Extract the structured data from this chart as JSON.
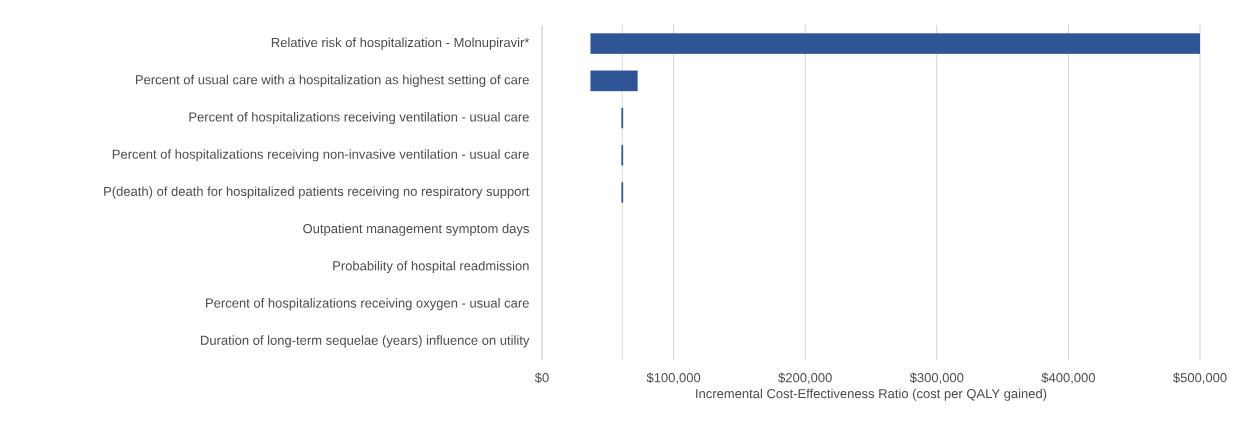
{
  "chart_data": {
    "type": "bar",
    "orientation": "horizontal",
    "xlabel": "Incremental Cost-Effectiveness  Ratio (cost per QALY gained)",
    "categories": [
      "Relative risk of hospitalization - Molnupiravir*",
      "Percent of usual care with a hospitalization as highest setting of care",
      "Percent of hospitalizations receiving ventilation - usual care",
      "Percent of hospitalizations receiving non-invasive ventilation - usual care",
      "P(death) of death for hospitalized patients receiving no respiratory support",
      "Outpatient management symptom days",
      "Probability of hospital readmission",
      "Percent of hospitalizations receiving oxygen - usual care",
      "Duration of long-term sequelae (years) influence on utility"
    ],
    "base": [
      37000,
      37000,
      60500,
      60500,
      60500,
      null,
      null,
      null,
      null
    ],
    "values": [
      463000,
      35500,
      1000,
      1000,
      1000,
      null,
      null,
      null,
      null
    ],
    "color": "#2f5597",
    "xlim": [
      0,
      500000
    ],
    "xticks": [
      {
        "value": 0,
        "label": "$0"
      },
      {
        "value": 100000,
        "label": "$100,000"
      },
      {
        "value": 200000,
        "label": "$200,000"
      },
      {
        "value": 300000,
        "label": "$300,000"
      },
      {
        "value": 400000,
        "label": "$400,000"
      },
      {
        "value": 500000,
        "label": "$500,000"
      }
    ],
    "ref_lines": [
      {
        "axis": "x",
        "value": 61000,
        "color": "#d9d9d9"
      }
    ],
    "grid": "x"
  }
}
